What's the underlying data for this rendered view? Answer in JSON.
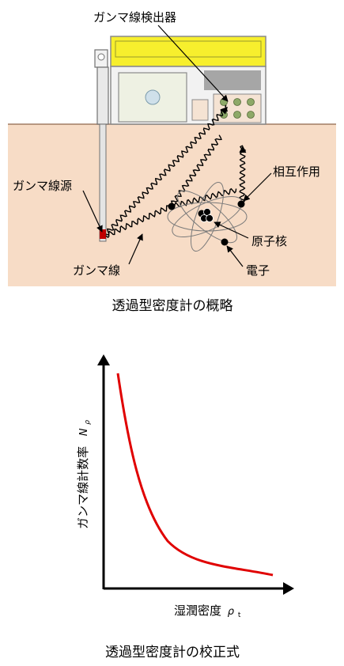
{
  "gauge_figure": {
    "labels": {
      "detector": "ガンマ線検出器",
      "source": "ガンマ線源",
      "interaction": "相互作用",
      "nucleus": "原子核",
      "ray": "ガンマ線",
      "electron": "電子"
    },
    "caption": "透過型密度計の概略",
    "colors": {
      "soil": "#f7dcc6",
      "ground_line": "#a07d63",
      "device_top": "#f7ef2d",
      "device_body": "#f2f2f2",
      "screen": "#eef1e3",
      "display": "#a6a6a6",
      "button_green": "#8da968",
      "source_red": "#c00000"
    }
  },
  "graph_figure": {
    "y_axis_label": "ガンマ線計数率",
    "y_axis_symbol": "N",
    "y_axis_subscript": "ρ",
    "x_axis_label": "湿潤密度",
    "x_axis_symbol": "ρ",
    "x_axis_subscript": "t",
    "caption": "透過型密度計の校正式",
    "curve_color": "#e00000"
  }
}
